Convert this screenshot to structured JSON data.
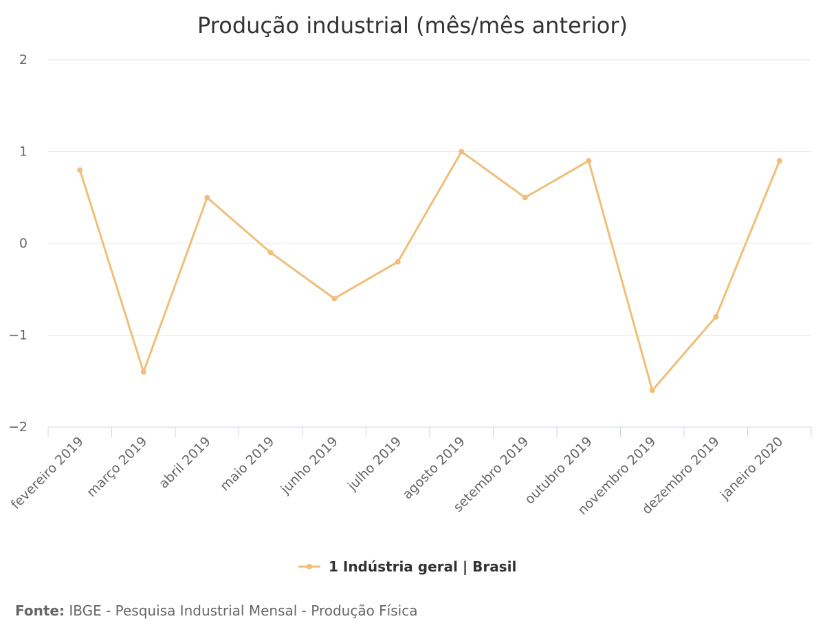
{
  "chart_data": {
    "type": "line",
    "title": "Produção industrial (mês/mês anterior)",
    "categories": [
      "fevereiro 2019",
      "março 2019",
      "abril 2019",
      "maio 2019",
      "junho 2019",
      "julho 2019",
      "agosto 2019",
      "setembro 2019",
      "outubro 2019",
      "novembro 2019",
      "dezembro 2019",
      "janeiro 2020"
    ],
    "series": [
      {
        "name": "1 Indústria geral | Brasil",
        "color": "#f0be78",
        "values": [
          0.8,
          -1.4,
          0.5,
          -0.1,
          -0.6,
          -0.2,
          1.0,
          0.5,
          0.9,
          -1.6,
          -0.8,
          0.9
        ]
      }
    ],
    "ylim": [
      -2,
      2
    ],
    "yticks": [
      2,
      1,
      0,
      -1,
      -2
    ],
    "ytick_labels": [
      "2",
      "1",
      "0",
      "−1",
      "−2"
    ],
    "grid": true,
    "legend_position": "bottom-center"
  },
  "source": {
    "label": "Fonte:",
    "text": "IBGE - Pesquisa Industrial Mensal - Produção Física"
  },
  "colors": {
    "grid": "#e6e6e6",
    "axis": "#ccd6eb",
    "title": "#333333",
    "tick": "#666666"
  }
}
